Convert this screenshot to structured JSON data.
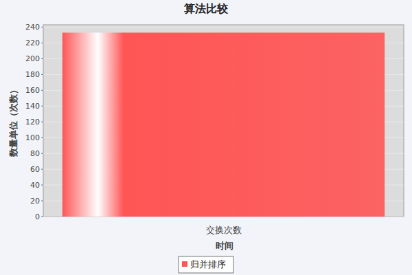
{
  "chart_data": {
    "type": "bar",
    "title": "算法比较",
    "y_label": "数量单位（次数）",
    "x_label": "时间",
    "categories": [
      "交换次数"
    ],
    "series": [
      {
        "name": "归并排序",
        "color": "#ff5555",
        "values": [
          233
        ]
      }
    ],
    "ylim": [
      0,
      243
    ],
    "yticks": [
      0,
      20,
      40,
      60,
      80,
      100,
      120,
      140,
      160,
      180,
      200,
      220,
      240
    ],
    "grid": true,
    "legend": "bottom"
  }
}
